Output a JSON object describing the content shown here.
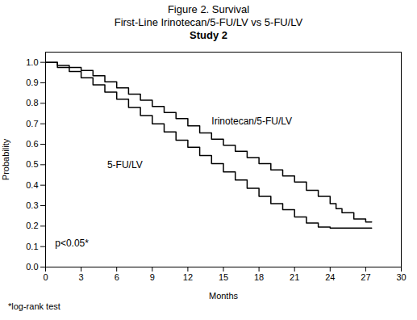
{
  "chart_data": {
    "type": "line",
    "line_style": "step",
    "title": "Figure 2. Survival",
    "subtitle": [
      "First-Line Irinotecan/5-FU/LV vs 5-FU/LV",
      "Study 2"
    ],
    "xlabel": "Months",
    "ylabel": "Probability",
    "xlim": [
      0,
      30
    ],
    "ylim": [
      0.0,
      1.05
    ],
    "xticks": [
      0,
      3,
      6,
      9,
      12,
      15,
      18,
      21,
      24,
      27,
      30
    ],
    "yticks": [
      {
        "value": 0,
        "label": "0.0"
      },
      0.1,
      0.2,
      0.3,
      0.4,
      0.5,
      0.6,
      0.7,
      0.8,
      0.9,
      {
        "value": 1,
        "label": "1.0"
      }
    ],
    "grid": false,
    "series": [
      {
        "name": "Irinotecan/5-FU/LV",
        "color": "#000000",
        "x": [
          0,
          1,
          2,
          3,
          4,
          5,
          6,
          7,
          8,
          9,
          10,
          11,
          12,
          13,
          14,
          15,
          16,
          17,
          18,
          19,
          20,
          21,
          22,
          23,
          24,
          24.5,
          25,
          26,
          27,
          27.5
        ],
        "values": [
          1.0,
          0.985,
          0.975,
          0.96,
          0.935,
          0.905,
          0.875,
          0.845,
          0.815,
          0.785,
          0.755,
          0.725,
          0.69,
          0.655,
          0.625,
          0.595,
          0.565,
          0.535,
          0.505,
          0.475,
          0.445,
          0.415,
          0.375,
          0.345,
          0.31,
          0.285,
          0.265,
          0.235,
          0.22,
          0.22
        ]
      },
      {
        "name": "5-FU/LV",
        "color": "#000000",
        "x": [
          0,
          1,
          2,
          3,
          4,
          5,
          6,
          7,
          8,
          9,
          10,
          11,
          12,
          13,
          14,
          15,
          16,
          17,
          18,
          19,
          20,
          21,
          22,
          23,
          24,
          25,
          26,
          27,
          27.5
        ],
        "values": [
          1.0,
          0.975,
          0.955,
          0.925,
          0.89,
          0.855,
          0.82,
          0.78,
          0.74,
          0.7,
          0.66,
          0.62,
          0.585,
          0.545,
          0.505,
          0.465,
          0.425,
          0.385,
          0.345,
          0.31,
          0.28,
          0.245,
          0.215,
          0.195,
          0.19,
          0.19,
          0.19,
          0.19,
          0.19
        ]
      }
    ],
    "annotations": [
      {
        "text": "Irinotecan/5-FU/LV",
        "x": 14.0,
        "y": 0.71
      },
      {
        "text": "5-FU/LV",
        "x": 5.2,
        "y": 0.5
      },
      {
        "text": "p<0.05*",
        "x": 0.8,
        "y": 0.115
      }
    ],
    "footnote": "*log-rank test"
  }
}
